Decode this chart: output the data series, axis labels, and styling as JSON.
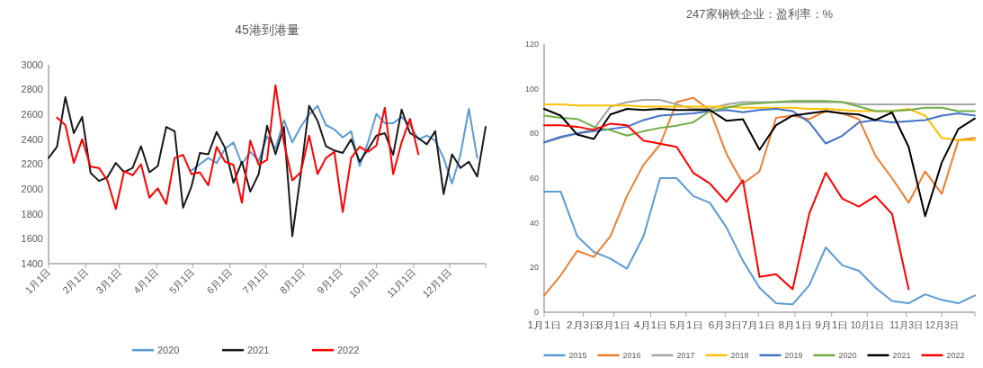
{
  "chart_data": [
    {
      "type": "line",
      "title": "45港到港量",
      "legend": "bottom",
      "x": [
        "--01-01",
        "--01-08",
        "--01-15",
        "--01-22",
        "--01-29",
        "--02-05",
        "--02-12",
        "--02-19",
        "--02-26",
        "--03-05",
        "--03-12",
        "--03-19",
        "--03-26",
        "--04-02",
        "--04-09",
        "--04-16",
        "--04-23",
        "--04-30",
        "--05-07",
        "--05-14",
        "--05-21",
        "--05-28",
        "--06-04",
        "--06-11",
        "--06-18",
        "--06-25",
        "--07-02",
        "--07-09",
        "--07-16",
        "--07-23",
        "--07-30",
        "--08-06",
        "--08-13",
        "--08-20",
        "--08-27",
        "--09-03",
        "--09-10",
        "--09-17",
        "--09-24",
        "--10-01",
        "--10-08",
        "--10-15",
        "--10-22",
        "--10-29",
        "--11-05",
        "--11-12",
        "--11-19",
        "--11-26",
        "--12-03",
        "--12-10",
        "--12-17",
        "--12-24",
        "--12-31"
      ],
      "xlim": [
        "--01-01",
        "--12-31"
      ],
      "xticks": [
        {
          "value": "--01-01",
          "label": "1月1日"
        },
        {
          "value": "--02-01",
          "label": "2月1日"
        },
        {
          "value": "--03-01",
          "label": "3月1日"
        },
        {
          "value": "--04-01",
          "label": "4月1日"
        },
        {
          "value": "--05-01",
          "label": "5月1日"
        },
        {
          "value": "--06-01",
          "label": "6月1日"
        },
        {
          "value": "--07-01",
          "label": "7月1日"
        },
        {
          "value": "--08-01",
          "label": "8月1日"
        },
        {
          "value": "--09-01",
          "label": "9月1日"
        },
        {
          "value": "--10-01",
          "label": "10月1日"
        },
        {
          "value": "--11-01",
          "label": "11月1日"
        },
        {
          "value": "--12-01",
          "label": "12月1日"
        },
        {
          "value": "--12-31",
          "label": null
        }
      ],
      "ylim": [
        1400,
        3000
      ],
      "yticks": [
        1400,
        1600,
        1800,
        2000,
        2200,
        2400,
        2600,
        2800,
        3000
      ],
      "series": [
        {
          "name": "2020",
          "color": "#5b9bd5",
          "values": [
            null,
            null,
            null,
            null,
            null,
            null,
            null,
            null,
            null,
            null,
            null,
            null,
            null,
            null,
            null,
            null,
            null,
            2150,
            2200,
            2250,
            2210,
            2325,
            2375,
            2200,
            2300,
            2225,
            2425,
            2325,
            2555,
            2375,
            2500,
            2600,
            2670,
            2515,
            2480,
            2415,
            2465,
            2185,
            2375,
            2605,
            2530,
            2530,
            2580,
            2515,
            2400,
            2430,
            2390,
            2250,
            2045,
            2275,
            2645,
            2250,
            null
          ]
        },
        {
          "name": "2021",
          "color": "#1a1a1a",
          "values": [
            2250,
            2340,
            2740,
            2450,
            2580,
            2130,
            2065,
            2095,
            2210,
            2135,
            2170,
            2345,
            2135,
            2185,
            2500,
            2465,
            1850,
            2020,
            2290,
            2280,
            2460,
            2330,
            2050,
            2220,
            1980,
            2120,
            2510,
            2280,
            2500,
            1620,
            2120,
            2670,
            2550,
            2345,
            2310,
            2290,
            2400,
            2220,
            2320,
            2430,
            2450,
            2275,
            2640,
            2450,
            2410,
            2360,
            2465,
            1960,
            2280,
            2170,
            2220,
            2100,
            2500
          ]
        },
        {
          "name": "2022",
          "color": "#ff0000",
          "values": [
            null,
            2575,
            2515,
            2210,
            2400,
            2180,
            2170,
            2070,
            1840,
            2145,
            2110,
            2200,
            1930,
            2005,
            1880,
            2250,
            2275,
            2120,
            2135,
            2030,
            2340,
            2220,
            2195,
            1890,
            2390,
            2195,
            2235,
            2835,
            2375,
            2070,
            2135,
            2430,
            2120,
            2250,
            2300,
            1815,
            2250,
            2340,
            2300,
            2350,
            2655,
            2120,
            2375,
            2565,
            2280,
            null,
            null,
            null,
            null,
            null,
            null,
            null,
            null
          ]
        }
      ]
    },
    {
      "type": "line",
      "title": "247家钢铁企业：盈利率：%",
      "legend": "bottom",
      "x": [
        "--01-01",
        "--01-15",
        "--01-29",
        "--02-12",
        "--02-26",
        "--03-12",
        "--03-26",
        "--04-09",
        "--04-23",
        "--05-07",
        "--05-21",
        "--06-04",
        "--06-18",
        "--07-02",
        "--07-16",
        "--07-30",
        "--08-13",
        "--08-27",
        "--09-10",
        "--09-24",
        "--10-08",
        "--10-22",
        "--11-05",
        "--11-19",
        "--12-03",
        "--12-17",
        "--12-31"
      ],
      "xlim": [
        "--01-01",
        "--12-31"
      ],
      "xticks": [
        {
          "value": "--01-01",
          "label": "1月1日"
        },
        {
          "value": "--02-03",
          "label": "2月3日"
        },
        {
          "value": "--03-01",
          "label": "3月1日"
        },
        {
          "value": "--04-01",
          "label": "4月1日"
        },
        {
          "value": "--05-01",
          "label": "5月1日"
        },
        {
          "value": "--06-03",
          "label": "6月3日"
        },
        {
          "value": "--07-01",
          "label": "7月1日"
        },
        {
          "value": "--08-01",
          "label": "8月1日"
        },
        {
          "value": "--09-01",
          "label": "9月1日"
        },
        {
          "value": "--10-01",
          "label": "10月1日"
        },
        {
          "value": "--11-03",
          "label": "11月3日"
        },
        {
          "value": "--12-03",
          "label": "12月3日"
        },
        {
          "value": "--12-31",
          "label": null
        }
      ],
      "ylim": [
        0,
        120
      ],
      "yticks": [
        0,
        20,
        40,
        60,
        80,
        100,
        120
      ],
      "series": [
        {
          "name": "2015",
          "color": "#5b9bd5",
          "values": [
            54,
            54,
            34,
            27,
            24,
            19.5,
            34,
            60,
            60,
            52,
            49,
            38,
            23,
            11,
            4,
            3.5,
            12,
            29,
            21,
            18.5,
            11,
            5,
            4,
            8,
            5.5,
            4,
            7.5
          ]
        },
        {
          "name": "2016",
          "color": "#ed7d31",
          "values": [
            7.5,
            16.5,
            27.5,
            24.7,
            34,
            52,
            66,
            75,
            94,
            96,
            90.5,
            71,
            57.6,
            63,
            87,
            88,
            86.4,
            90,
            89,
            86.4,
            70,
            60,
            49,
            63,
            53,
            77,
            78
          ]
        },
        {
          "name": "2017",
          "color": "#a5a5a5",
          "values": [
            76,
            78,
            80,
            82,
            92,
            94,
            95,
            95,
            93,
            91,
            91,
            93,
            94,
            94,
            94,
            94,
            94,
            94,
            94,
            93,
            93,
            93,
            93,
            93,
            93,
            93,
            93
          ]
        },
        {
          "name": "2018",
          "color": "#ffc000",
          "values": [
            93,
            93,
            92.5,
            92.5,
            92.5,
            92.5,
            92,
            92,
            92,
            92,
            92,
            92,
            91.5,
            91.5,
            91.5,
            91.5,
            91,
            91,
            90.5,
            90,
            90,
            90,
            91,
            88,
            78,
            77,
            77
          ]
        },
        {
          "name": "2019",
          "color": "#4472c4",
          "values": [
            76,
            78.5,
            80,
            81,
            82,
            83,
            86,
            88,
            88.5,
            89,
            90,
            90.5,
            89.5,
            90.5,
            91,
            90,
            85,
            75.5,
            79,
            85,
            86,
            85,
            85.5,
            86,
            88,
            89,
            88
          ]
        },
        {
          "name": "2020",
          "color": "#70ad47",
          "values": [
            88,
            87,
            86.5,
            83,
            81.5,
            79,
            81,
            82.5,
            83.5,
            85,
            90,
            91.5,
            93,
            93.5,
            94,
            94.5,
            94.5,
            94.5,
            94,
            92,
            90,
            90,
            90.5,
            91.5,
            91.5,
            90,
            90
          ]
        },
        {
          "name": "2021",
          "color": "#000000",
          "values": [
            91,
            88,
            79.5,
            77.5,
            88.5,
            91,
            90.5,
            91,
            90.5,
            90.5,
            90.5,
            85.7,
            86.4,
            72.7,
            83.7,
            88,
            89,
            90,
            89,
            88.5,
            86,
            89.4,
            74,
            43,
            67,
            82,
            86.7
          ]
        },
        {
          "name": "2022",
          "color": "#ff0000",
          "values": [
            83.7,
            83.7,
            83,
            81.6,
            84.4,
            83.7,
            76.8,
            75.4,
            74,
            62.4,
            57.6,
            49.4,
            59,
            15.8,
            17,
            10.3,
            44,
            62.4,
            50.8,
            47.3,
            52,
            44,
            10.3,
            null,
            null,
            null,
            null
          ]
        }
      ]
    }
  ]
}
